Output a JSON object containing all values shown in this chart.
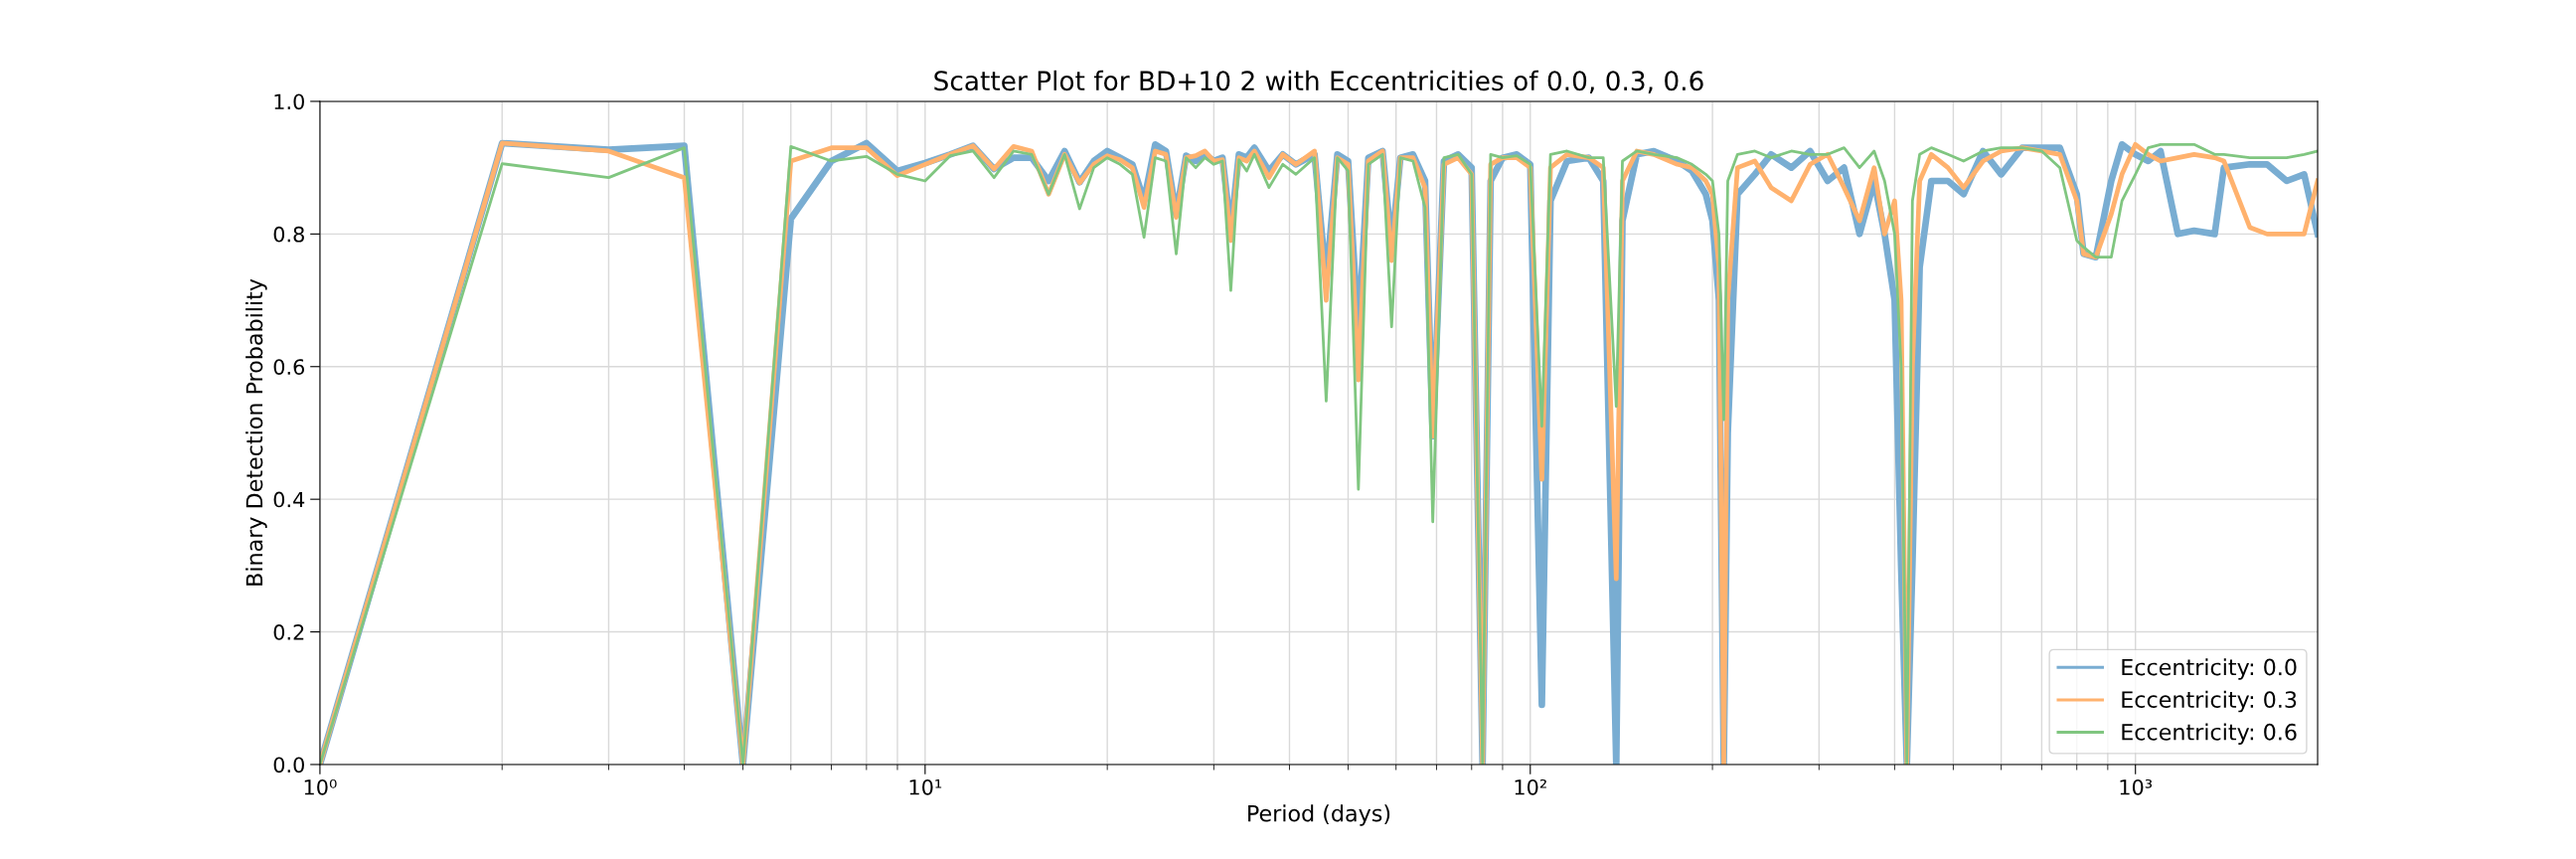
{
  "chart_data": {
    "type": "line",
    "title": "Scatter Plot for BD+10 2 with Eccentricities of 0.0, 0.3, 0.6",
    "xlabel": "Period (days)",
    "ylabel": "Binary Detection Probability",
    "x": [
      1,
      2,
      3,
      4,
      5,
      6,
      7,
      8,
      9,
      10,
      11,
      12,
      13,
      14,
      15,
      16,
      17,
      18,
      19,
      20,
      21,
      22,
      23,
      24,
      25,
      26,
      27,
      28,
      29,
      30,
      31,
      32,
      33,
      34,
      35,
      37,
      39,
      41,
      44,
      46,
      48,
      50,
      52,
      54,
      57,
      59,
      61,
      64,
      67,
      69,
      72,
      76,
      80,
      83.4,
      86,
      90,
      95,
      100,
      104.5,
      108,
      115,
      125,
      132,
      138.7,
      142,
      150,
      160,
      175,
      185,
      195,
      200,
      205,
      208.8,
      212,
      220,
      235,
      250,
      270,
      290,
      310,
      330,
      350,
      370,
      385,
      400,
      410,
      419,
      428,
      440,
      460,
      490,
      520,
      560,
      600,
      650,
      700,
      750,
      800,
      821,
      860,
      912,
      950,
      1000,
      1050,
      1100,
      1175,
      1250,
      1352,
      1400,
      1545,
      1650,
      1778,
      1900,
      2000
    ],
    "series": [
      {
        "name": "Eccentricity: 0.0",
        "color": "#79add2",
        "values": [
          0,
          0.937,
          0.927,
          0.933,
          0,
          0.823,
          0.91,
          0.937,
          0.895,
          0.907,
          0.92,
          0.933,
          0.898,
          0.915,
          0.915,
          0.88,
          0.925,
          0.878,
          0.91,
          0.925,
          0.915,
          0.905,
          0.85,
          0.935,
          0.925,
          0.83,
          0.918,
          0.91,
          0.92,
          0.91,
          0.915,
          0.805,
          0.92,
          0.915,
          0.93,
          0.895,
          0.92,
          0.905,
          0.92,
          0.73,
          0.92,
          0.91,
          0.65,
          0.915,
          0.925,
          0.78,
          0.915,
          0.92,
          0.88,
          0.495,
          0.91,
          0.92,
          0.9,
          0,
          0.88,
          0.915,
          0.92,
          0.905,
          0.09,
          0.85,
          0.91,
          0.915,
          0.88,
          0,
          0.82,
          0.92,
          0.925,
          0.91,
          0.895,
          0.86,
          0.82,
          0.7,
          0,
          0.5,
          0.86,
          0.89,
          0.92,
          0.9,
          0.925,
          0.88,
          0.9,
          0.8,
          0.88,
          0.8,
          0.7,
          0.3,
          0,
          0.3,
          0.75,
          0.88,
          0.88,
          0.86,
          0.925,
          0.89,
          0.93,
          0.93,
          0.93,
          0.86,
          0.77,
          0.765,
          0.88,
          0.935,
          0.92,
          0.91,
          0.925,
          0.8,
          0.805,
          0.8,
          0.9,
          0.905,
          0.905,
          0.88,
          0.89,
          0.8
        ]
      },
      {
        "name": "Eccentricity: 0.3",
        "color": "#ffb26e",
        "values": [
          0,
          0.937,
          0.925,
          0.885,
          0,
          0.91,
          0.93,
          0.93,
          0.888,
          0.905,
          0.92,
          0.933,
          0.898,
          0.932,
          0.925,
          0.86,
          0.92,
          0.877,
          0.905,
          0.918,
          0.912,
          0.9,
          0.84,
          0.925,
          0.92,
          0.825,
          0.915,
          0.918,
          0.925,
          0.91,
          0.912,
          0.79,
          0.915,
          0.91,
          0.925,
          0.885,
          0.92,
          0.905,
          0.925,
          0.7,
          0.915,
          0.905,
          0.58,
          0.91,
          0.925,
          0.76,
          0.915,
          0.915,
          0.87,
          0.495,
          0.905,
          0.915,
          0.89,
          0,
          0.905,
          0.915,
          0.915,
          0.9,
          0.43,
          0.9,
          0.92,
          0.915,
          0.9,
          0.28,
          0.88,
          0.925,
          0.92,
          0.905,
          0.9,
          0.88,
          0.86,
          0.75,
          0,
          0.7,
          0.9,
          0.91,
          0.87,
          0.85,
          0.905,
          0.92,
          0.87,
          0.82,
          0.9,
          0.8,
          0.85,
          0.7,
          0,
          0.6,
          0.88,
          0.92,
          0.9,
          0.87,
          0.91,
          0.925,
          0.93,
          0.925,
          0.92,
          0.85,
          0.77,
          0.765,
          0.83,
          0.89,
          0.935,
          0.92,
          0.91,
          0.915,
          0.92,
          0.915,
          0.91,
          0.81,
          0.8,
          0.8,
          0.8,
          0.88
        ]
      },
      {
        "name": "Eccentricity: 0.6",
        "color": "#80c680",
        "values": [
          0,
          0.906,
          0.885,
          0.93,
          0,
          0.932,
          0.91,
          0.917,
          0.89,
          0.88,
          0.918,
          0.925,
          0.885,
          0.925,
          0.92,
          0.86,
          0.92,
          0.838,
          0.9,
          0.915,
          0.905,
          0.89,
          0.795,
          0.915,
          0.91,
          0.77,
          0.915,
          0.9,
          0.915,
          0.905,
          0.91,
          0.715,
          0.912,
          0.895,
          0.92,
          0.87,
          0.905,
          0.89,
          0.915,
          0.548,
          0.915,
          0.895,
          0.415,
          0.905,
          0.92,
          0.66,
          0.915,
          0.91,
          0.84,
          0.366,
          0.915,
          0.92,
          0.89,
          0,
          0.92,
          0.915,
          0.918,
          0.905,
          0.51,
          0.92,
          0.925,
          0.915,
          0.915,
          0.54,
          0.91,
          0.925,
          0.92,
          0.915,
          0.905,
          0.89,
          0.88,
          0.8,
          0.52,
          0.88,
          0.92,
          0.925,
          0.915,
          0.925,
          0.92,
          0.92,
          0.93,
          0.9,
          0.925,
          0.88,
          0.8,
          0.6,
          0,
          0.85,
          0.92,
          0.93,
          0.92,
          0.91,
          0.925,
          0.93,
          0.93,
          0.925,
          0.9,
          0.79,
          0.78,
          0.765,
          0.765,
          0.85,
          0.89,
          0.93,
          0.935,
          0.935,
          0.935,
          0.92,
          0.92,
          0.915,
          0.915,
          0.915,
          0.92,
          0.925
        ]
      }
    ],
    "log": "x",
    "xlim": [
      1,
      2000
    ],
    "ylim": [
      0,
      1
    ],
    "xticks": [
      {
        "value": 1,
        "label": "10⁰"
      },
      {
        "value": 2,
        "label": null
      },
      {
        "value": 3,
        "label": null
      },
      {
        "value": 4,
        "label": null
      },
      {
        "value": 5,
        "label": null
      },
      {
        "value": 6,
        "label": null
      },
      {
        "value": 7,
        "label": null
      },
      {
        "value": 8,
        "label": null
      },
      {
        "value": 9,
        "label": null
      },
      {
        "value": 10,
        "label": "10¹"
      },
      {
        "value": 20,
        "label": null
      },
      {
        "value": 30,
        "label": null
      },
      {
        "value": 40,
        "label": null
      },
      {
        "value": 50,
        "label": null
      },
      {
        "value": 60,
        "label": null
      },
      {
        "value": 70,
        "label": null
      },
      {
        "value": 80,
        "label": null
      },
      {
        "value": 90,
        "label": null
      },
      {
        "value": 100,
        "label": "10²"
      },
      {
        "value": 200,
        "label": null
      },
      {
        "value": 300,
        "label": null
      },
      {
        "value": 400,
        "label": null
      },
      {
        "value": 500,
        "label": null
      },
      {
        "value": 600,
        "label": null
      },
      {
        "value": 700,
        "label": null
      },
      {
        "value": 800,
        "label": null
      },
      {
        "value": 900,
        "label": null
      },
      {
        "value": 1000,
        "label": "10³"
      }
    ],
    "yticks": [
      {
        "value": 0,
        "label": "0.0"
      },
      {
        "value": 0.2,
        "label": "0.2"
      },
      {
        "value": 0.4,
        "label": "0.4"
      },
      {
        "value": 0.6,
        "label": "0.6"
      },
      {
        "value": 0.8,
        "label": "0.8"
      },
      {
        "value": 1,
        "label": "1.0"
      }
    ],
    "grid": true,
    "legend": "lower right",
    "line_style": "solid",
    "marker": "none"
  }
}
